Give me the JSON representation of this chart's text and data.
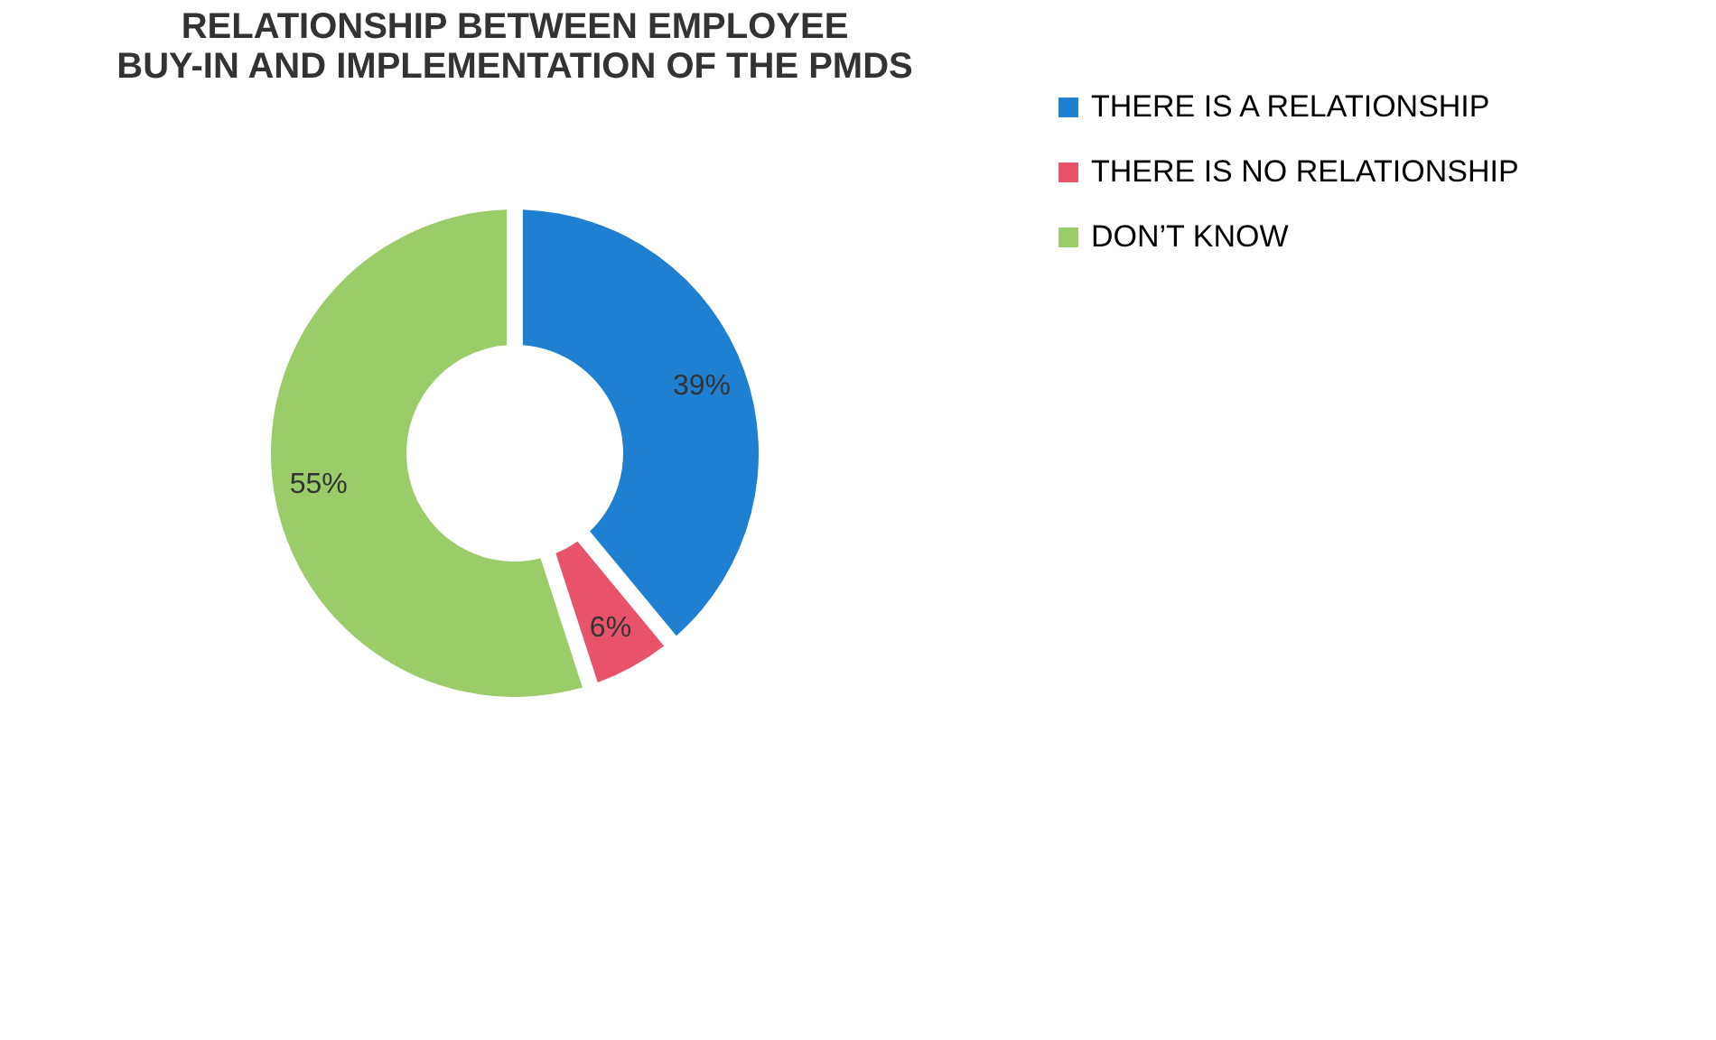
{
  "chart_data": {
    "type": "donut",
    "title": "RELATIONSHIP BETWEEN EMPLOYEE BUY-IN  AND IMPLEMENTATION OF THE PMDS",
    "categories": [
      "THERE IS A RELATIONSHIP",
      "THERE IS NO RELATIONSHIP",
      "DON’T KNOW"
    ],
    "values": [
      39,
      6,
      55
    ],
    "colors": [
      "#1f7fd0",
      "#e8536a",
      "#9acd6a"
    ],
    "value_labels": [
      "39%",
      "6%",
      "55%"
    ],
    "legend": "right"
  }
}
